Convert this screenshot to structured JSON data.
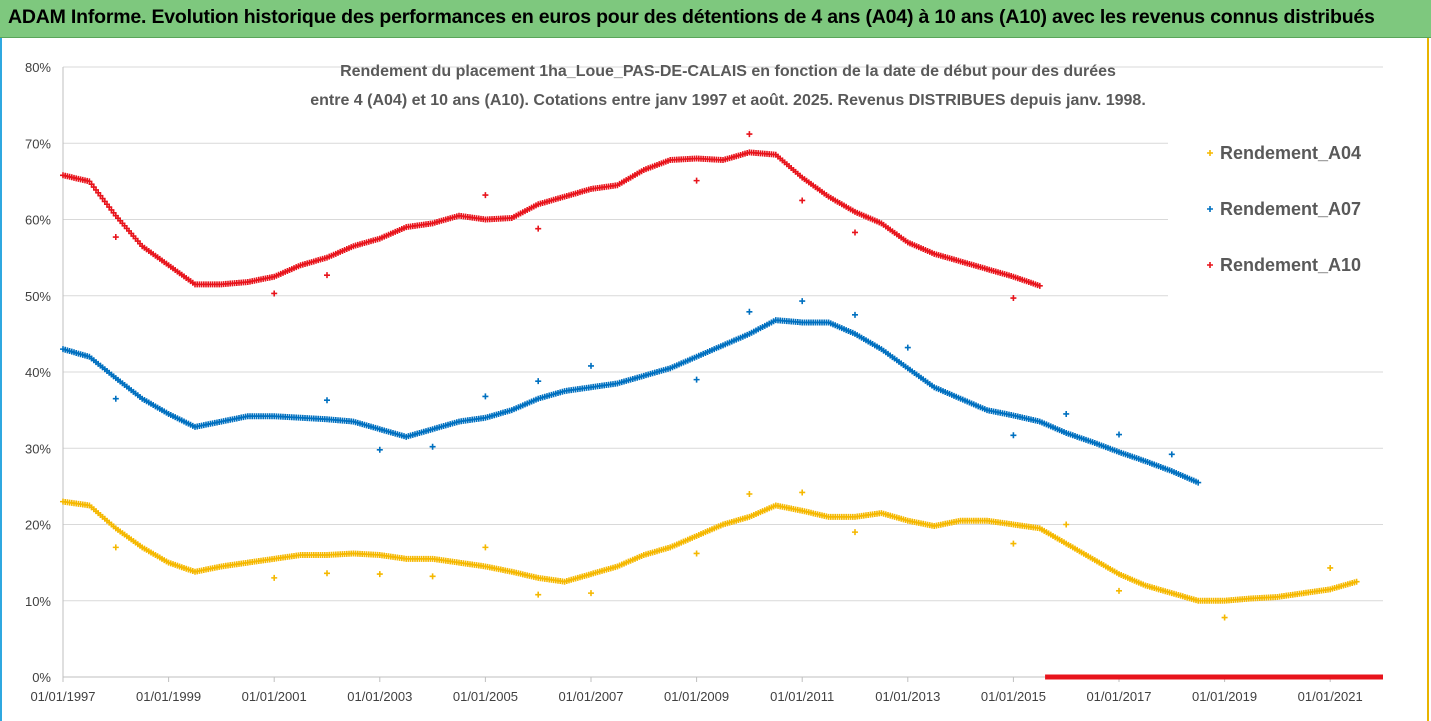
{
  "banner": {
    "title": "ADAM Informe. Evolution historique des performances en euros pour des détentions de 4 ans (A04) à 10 ans (A10) avec les revenus connus distribués"
  },
  "chart_data": {
    "type": "scatter",
    "title_lines": [
      "Rendement du placement 1ha_Loue_PAS-DE-CALAIS en fonction de la date de début pour des durées",
      "entre 4 (A04) et 10 ans (A10). Cotations entre janv 1997 et août. 2025. Revenus DISTRIBUES depuis janv. 1998."
    ],
    "x_ticks": [
      "01/01/1997",
      "01/01/1999",
      "01/01/2001",
      "01/01/2003",
      "01/01/2005",
      "01/01/2007",
      "01/01/2009",
      "01/01/2011",
      "01/01/2013",
      "01/01/2015",
      "01/01/2017",
      "01/01/2019",
      "01/01/2021"
    ],
    "xlim": [
      1997.0,
      2022.0
    ],
    "y_ticks": [
      "0%",
      "10%",
      "20%",
      "30%",
      "40%",
      "50%",
      "60%",
      "70%",
      "80%"
    ],
    "ylim": [
      0,
      80
    ],
    "grid": "horizontal",
    "legend_position": "right",
    "series": [
      {
        "name": "Rendement_A04",
        "color": "#f5b800",
        "points": [
          [
            1997.0,
            23
          ],
          [
            1997.5,
            22.5
          ],
          [
            1998.0,
            19.5
          ],
          [
            1998.5,
            17
          ],
          [
            1999.0,
            15
          ],
          [
            1999.5,
            13.8
          ],
          [
            2000.0,
            14.5
          ],
          [
            2000.5,
            15
          ],
          [
            2001.0,
            15.5
          ],
          [
            2001.5,
            16
          ],
          [
            2002.0,
            16
          ],
          [
            2002.5,
            16.2
          ],
          [
            2003.0,
            16
          ],
          [
            2003.5,
            15.5
          ],
          [
            2004.0,
            15.5
          ],
          [
            2004.5,
            15
          ],
          [
            2005.0,
            14.5
          ],
          [
            2005.5,
            13.8
          ],
          [
            2006.0,
            13
          ],
          [
            2006.5,
            12.5
          ],
          [
            2007.0,
            13.5
          ],
          [
            2007.5,
            14.5
          ],
          [
            2008.0,
            16
          ],
          [
            2008.5,
            17
          ],
          [
            2009.0,
            18.5
          ],
          [
            2009.5,
            20
          ],
          [
            2010.0,
            21
          ],
          [
            2010.5,
            22.5
          ],
          [
            2011.0,
            21.8
          ],
          [
            2011.5,
            21
          ],
          [
            2012.0,
            21
          ],
          [
            2012.5,
            21.5
          ],
          [
            2013.0,
            20.5
          ],
          [
            2013.5,
            19.8
          ],
          [
            2014.0,
            20.5
          ],
          [
            2014.5,
            20.5
          ],
          [
            2015.0,
            20
          ],
          [
            2015.5,
            19.5
          ],
          [
            2016.0,
            17.5
          ],
          [
            2016.5,
            15.5
          ],
          [
            2017.0,
            13.5
          ],
          [
            2017.5,
            12
          ],
          [
            2018.0,
            11
          ],
          [
            2018.5,
            10
          ],
          [
            2019.0,
            10
          ],
          [
            2019.5,
            10.3
          ],
          [
            2020.0,
            10.5
          ],
          [
            2020.5,
            11
          ],
          [
            2021.0,
            11.5
          ],
          [
            2021.5,
            12.5
          ]
        ],
        "outliers": [
          [
            1998.0,
            17
          ],
          [
            2001.0,
            13
          ],
          [
            2002.0,
            13.6
          ],
          [
            2003.0,
            13.5
          ],
          [
            2004.0,
            13.2
          ],
          [
            2005.0,
            17
          ],
          [
            2006.0,
            10.8
          ],
          [
            2007.0,
            11
          ],
          [
            2009.0,
            16.2
          ],
          [
            2010.0,
            24
          ],
          [
            2011.0,
            24.2
          ],
          [
            2012.0,
            19
          ],
          [
            2015.0,
            17.5
          ],
          [
            2016.0,
            20
          ],
          [
            2017.0,
            11.3
          ],
          [
            2019.0,
            7.8
          ],
          [
            2021.0,
            14.3
          ]
        ]
      },
      {
        "name": "Rendement_A07",
        "color": "#0070c0",
        "points": [
          [
            1997.0,
            43
          ],
          [
            1997.5,
            42
          ],
          [
            1998.0,
            39.2
          ],
          [
            1998.5,
            36.5
          ],
          [
            1999.0,
            34.5
          ],
          [
            1999.5,
            32.8
          ],
          [
            2000.0,
            33.5
          ],
          [
            2000.5,
            34.2
          ],
          [
            2001.0,
            34.2
          ],
          [
            2001.5,
            34
          ],
          [
            2002.0,
            33.8
          ],
          [
            2002.5,
            33.5
          ],
          [
            2003.0,
            32.5
          ],
          [
            2003.5,
            31.5
          ],
          [
            2004.0,
            32.5
          ],
          [
            2004.5,
            33.5
          ],
          [
            2005.0,
            34
          ],
          [
            2005.5,
            35
          ],
          [
            2006.0,
            36.5
          ],
          [
            2006.5,
            37.5
          ],
          [
            2007.0,
            38
          ],
          [
            2007.5,
            38.5
          ],
          [
            2008.0,
            39.5
          ],
          [
            2008.5,
            40.5
          ],
          [
            2009.0,
            42
          ],
          [
            2009.5,
            43.5
          ],
          [
            2010.0,
            45
          ],
          [
            2010.5,
            46.8
          ],
          [
            2011.0,
            46.5
          ],
          [
            2011.5,
            46.5
          ],
          [
            2012.0,
            45
          ],
          [
            2012.5,
            43
          ],
          [
            2013.0,
            40.5
          ],
          [
            2013.5,
            38
          ],
          [
            2014.0,
            36.5
          ],
          [
            2014.5,
            35
          ],
          [
            2015.0,
            34.3
          ],
          [
            2015.5,
            33.5
          ],
          [
            2016.0,
            32
          ],
          [
            2016.5,
            30.8
          ],
          [
            2017.0,
            29.5
          ],
          [
            2017.5,
            28.3
          ],
          [
            2018.0,
            27
          ],
          [
            2018.5,
            25.5
          ]
        ],
        "outliers": [
          [
            1998.0,
            36.5
          ],
          [
            2002.0,
            36.3
          ],
          [
            2003.0,
            29.8
          ],
          [
            2004.0,
            30.2
          ],
          [
            2005.0,
            36.8
          ],
          [
            2006.0,
            38.8
          ],
          [
            2007.0,
            40.8
          ],
          [
            2009.0,
            39
          ],
          [
            2010.0,
            47.9
          ],
          [
            2011.0,
            49.3
          ],
          [
            2012.0,
            47.5
          ],
          [
            2013.0,
            43.2
          ],
          [
            2015.0,
            31.7
          ],
          [
            2016.0,
            34.5
          ],
          [
            2017.0,
            31.8
          ],
          [
            2018.0,
            29.2
          ]
        ]
      },
      {
        "name": "Rendement_A10",
        "color": "#e8141c",
        "points": [
          [
            1997.0,
            65.8
          ],
          [
            1997.5,
            65
          ],
          [
            1998.0,
            60.5
          ],
          [
            1998.5,
            56.5
          ],
          [
            1999.0,
            54
          ],
          [
            1999.5,
            51.5
          ],
          [
            2000.0,
            51.5
          ],
          [
            2000.5,
            51.8
          ],
          [
            2001.0,
            52.5
          ],
          [
            2001.5,
            54
          ],
          [
            2002.0,
            55
          ],
          [
            2002.5,
            56.5
          ],
          [
            2003.0,
            57.5
          ],
          [
            2003.5,
            59
          ],
          [
            2004.0,
            59.5
          ],
          [
            2004.5,
            60.5
          ],
          [
            2005.0,
            60
          ],
          [
            2005.5,
            60.2
          ],
          [
            2006.0,
            62
          ],
          [
            2006.5,
            63
          ],
          [
            2007.0,
            64
          ],
          [
            2007.5,
            64.5
          ],
          [
            2008.0,
            66.5
          ],
          [
            2008.5,
            67.8
          ],
          [
            2009.0,
            68
          ],
          [
            2009.5,
            67.8
          ],
          [
            2010.0,
            68.8
          ],
          [
            2010.5,
            68.5
          ],
          [
            2011.0,
            65.5
          ],
          [
            2011.5,
            63
          ],
          [
            2012.0,
            61
          ],
          [
            2012.5,
            59.5
          ],
          [
            2013.0,
            57
          ],
          [
            2013.5,
            55.5
          ],
          [
            2014.0,
            54.5
          ],
          [
            2014.5,
            53.5
          ],
          [
            2015.0,
            52.5
          ],
          [
            2015.5,
            51.3
          ]
        ],
        "outliers": [
          [
            1998.0,
            57.7
          ],
          [
            2001.0,
            50.3
          ],
          [
            2002.0,
            52.7
          ],
          [
            2005.0,
            63.2
          ],
          [
            2006.0,
            58.8
          ],
          [
            2009.0,
            65.1
          ],
          [
            2010.0,
            71.2
          ],
          [
            2011.0,
            62.5
          ],
          [
            2012.0,
            58.3
          ],
          [
            2015.0,
            49.7
          ]
        ],
        "zero_range": [
          2015.6,
          2022.0
        ]
      }
    ]
  }
}
